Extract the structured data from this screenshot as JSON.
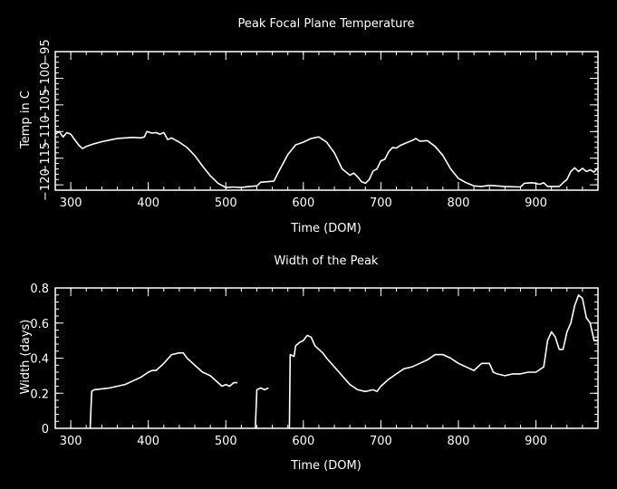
{
  "chart_data": [
    {
      "type": "line",
      "title": "Peak Focal Plane Temperature",
      "xlabel": "Time (DOM)",
      "ylabel": "Temp in C",
      "xlim": [
        280,
        980
      ],
      "ylim": [
        -121,
        -95
      ],
      "xticks": [
        300,
        400,
        500,
        600,
        700,
        800,
        900
      ],
      "yticks": [
        -120,
        -115,
        -110,
        -105,
        -100,
        -95
      ],
      "xtick_labels": [
        "300",
        "400",
        "500",
        "600",
        "700",
        "800",
        "900"
      ],
      "ytick_labels": [
        "−120",
        "−115",
        "−110",
        "−105",
        "−100",
        "−95"
      ],
      "line_color": "#ffffff",
      "background": "#000000",
      "series": [
        {
          "segments": [
            [
              [
                280,
                -110.5
              ],
              [
                285,
                -110
              ],
              [
                290,
                -111
              ],
              [
                295,
                -110.2
              ],
              [
                300,
                -110.5
              ],
              [
                305,
                -111.5
              ],
              [
                310,
                -112.5
              ],
              [
                315,
                -113.2
              ],
              [
                320,
                -112.8
              ],
              [
                330,
                -112.3
              ],
              [
                340,
                -111.9
              ],
              [
                350,
                -111.6
              ],
              [
                360,
                -111.3
              ],
              [
                370,
                -111.2
              ],
              [
                380,
                -111.1
              ],
              [
                390,
                -111.2
              ],
              [
                395,
                -111
              ],
              [
                398,
                -110
              ],
              [
                405,
                -110.3
              ],
              [
                410,
                -110.2
              ],
              [
                415,
                -110.5
              ],
              [
                420,
                -110.2
              ],
              [
                425,
                -111.5
              ],
              [
                430,
                -111.2
              ],
              [
                440,
                -112
              ],
              [
                450,
                -113
              ],
              [
                460,
                -114.5
              ],
              [
                470,
                -116.5
              ],
              [
                480,
                -118.3
              ],
              [
                490,
                -119.7
              ],
              [
                500,
                -120.5
              ],
              [
                510,
                -120.4
              ],
              [
                520,
                -120.5
              ],
              [
                530,
                -120.3
              ],
              [
                540,
                -120.2
              ],
              [
                545,
                -119.5
              ],
              [
                555,
                -119.4
              ],
              [
                562,
                -119.3
              ],
              [
                570,
                -117
              ],
              [
                580,
                -114.3
              ],
              [
                590,
                -112.5
              ],
              [
                600,
                -112
              ],
              [
                610,
                -111.3
              ],
              [
                620,
                -111
              ],
              [
                630,
                -112
              ],
              [
                640,
                -114
              ],
              [
                650,
                -117
              ],
              [
                660,
                -118.2
              ],
              [
                665,
                -117.8
              ],
              [
                670,
                -118.5
              ],
              [
                675,
                -119.4
              ],
              [
                680,
                -119.7
              ],
              [
                685,
                -119
              ],
              [
                690,
                -117.4
              ],
              [
                695,
                -117
              ],
              [
                700,
                -115.5
              ],
              [
                705,
                -115.2
              ],
              [
                710,
                -113.8
              ],
              [
                715,
                -113
              ],
              [
                720,
                -113.1
              ],
              [
                725,
                -112.6
              ],
              [
                730,
                -112.3
              ],
              [
                740,
                -111.7
              ],
              [
                745,
                -111.3
              ],
              [
                750,
                -111.8
              ],
              [
                760,
                -111.7
              ],
              [
                770,
                -112.8
              ],
              [
                780,
                -114.5
              ],
              [
                790,
                -117
              ],
              [
                800,
                -118.8
              ],
              [
                810,
                -119.6
              ],
              [
                820,
                -120.2
              ],
              [
                830,
                -120.3
              ],
              [
                840,
                -120.1
              ],
              [
                850,
                -120.2
              ],
              [
                860,
                -120.3
              ],
              [
                880,
                -120.4
              ],
              [
                885,
                -119.7
              ],
              [
                895,
                -119.6
              ],
              [
                905,
                -119.9
              ],
              [
                910,
                -119.6
              ],
              [
                915,
                -120.3
              ],
              [
                930,
                -120.3
              ],
              [
                935,
                -119.6
              ],
              [
                940,
                -119
              ],
              [
                945,
                -117.5
              ],
              [
                950,
                -116.8
              ],
              [
                955,
                -117.5
              ],
              [
                960,
                -116.9
              ],
              [
                965,
                -117.5
              ],
              [
                970,
                -117.2
              ],
              [
                975,
                -117.6
              ],
              [
                980,
                -116.8
              ]
            ]
          ]
        }
      ]
    },
    {
      "type": "line",
      "title": "Width of the Peak",
      "xlabel": "Time (DOM)",
      "ylabel": "Width (days)",
      "xlim": [
        280,
        980
      ],
      "ylim": [
        0,
        0.8
      ],
      "xticks": [
        300,
        400,
        500,
        600,
        700,
        800,
        900
      ],
      "yticks": [
        0,
        0.2,
        0.4,
        0.6,
        0.8
      ],
      "xtick_labels": [
        "300",
        "400",
        "500",
        "600",
        "700",
        "800",
        "900"
      ],
      "ytick_labels": [
        "0",
        "0.2",
        "0.4",
        "0.6",
        "0.8"
      ],
      "line_color": "#ffffff",
      "background": "#000000",
      "series": [
        {
          "segments": [
            [
              [
                325,
                0
              ],
              [
                327,
                0.21
              ],
              [
                330,
                0.22
              ],
              [
                340,
                0.225
              ],
              [
                350,
                0.23
              ],
              [
                360,
                0.24
              ],
              [
                370,
                0.25
              ],
              [
                380,
                0.27
              ],
              [
                390,
                0.29
              ],
              [
                400,
                0.32
              ],
              [
                405,
                0.33
              ],
              [
                410,
                0.33
              ],
              [
                420,
                0.37
              ],
              [
                430,
                0.42
              ],
              [
                440,
                0.43
              ],
              [
                445,
                0.43
              ],
              [
                450,
                0.4
              ],
              [
                460,
                0.36
              ],
              [
                470,
                0.32
              ],
              [
                480,
                0.3
              ],
              [
                490,
                0.26
              ],
              [
                495,
                0.24
              ],
              [
                500,
                0.25
              ],
              [
                505,
                0.24
              ],
              [
                510,
                0.26
              ],
              [
                515,
                0.26
              ]
            ],
            [
              [
                538,
                0
              ],
              [
                540,
                0.22
              ],
              [
                545,
                0.23
              ],
              [
                550,
                0.22
              ],
              [
                555,
                0.23
              ]
            ],
            [
              [
                582,
                0
              ],
              [
                583,
                0.42
              ],
              [
                588,
                0.41
              ],
              [
                590,
                0.47
              ],
              [
                595,
                0.49
              ],
              [
                600,
                0.5
              ],
              [
                605,
                0.53
              ],
              [
                610,
                0.52
              ],
              [
                615,
                0.47
              ],
              [
                620,
                0.45
              ],
              [
                625,
                0.43
              ],
              [
                630,
                0.4
              ],
              [
                640,
                0.35
              ],
              [
                650,
                0.3
              ],
              [
                660,
                0.25
              ],
              [
                670,
                0.22
              ],
              [
                680,
                0.21
              ],
              [
                690,
                0.22
              ],
              [
                695,
                0.21
              ],
              [
                700,
                0.24
              ],
              [
                705,
                0.26
              ],
              [
                710,
                0.28
              ],
              [
                720,
                0.31
              ],
              [
                730,
                0.34
              ],
              [
                740,
                0.35
              ],
              [
                750,
                0.37
              ],
              [
                760,
                0.39
              ],
              [
                770,
                0.42
              ],
              [
                780,
                0.42
              ],
              [
                790,
                0.4
              ],
              [
                800,
                0.37
              ],
              [
                810,
                0.35
              ],
              [
                820,
                0.33
              ],
              [
                830,
                0.37
              ],
              [
                840,
                0.37
              ],
              [
                845,
                0.32
              ],
              [
                850,
                0.31
              ],
              [
                860,
                0.3
              ],
              [
                870,
                0.31
              ],
              [
                880,
                0.31
              ],
              [
                890,
                0.32
              ],
              [
                900,
                0.32
              ],
              [
                910,
                0.35
              ],
              [
                915,
                0.5
              ],
              [
                920,
                0.55
              ],
              [
                925,
                0.52
              ],
              [
                930,
                0.45
              ],
              [
                935,
                0.45
              ],
              [
                940,
                0.55
              ],
              [
                945,
                0.6
              ],
              [
                950,
                0.7
              ],
              [
                955,
                0.76
              ],
              [
                960,
                0.74
              ],
              [
                965,
                0.63
              ],
              [
                970,
                0.6
              ],
              [
                975,
                0.5
              ],
              [
                980,
                0.5
              ]
            ]
          ]
        }
      ]
    }
  ]
}
